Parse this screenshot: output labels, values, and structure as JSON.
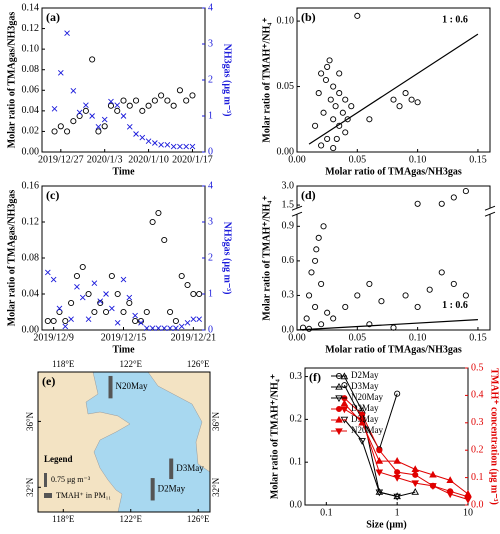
{
  "chart_data": [
    {
      "type": "scatter",
      "label": "(a)",
      "xlabel": "Time",
      "ylabel": "Molar ratio of TMAgas/NH3gas",
      "y2label": "NH3gas (μg m⁻³)",
      "xlim": [
        "2019/12/24",
        "2020/1/19"
      ],
      "xticks": [
        "2019/12/27",
        "2020/1/3",
        "2020/1/10",
        "2020/1/17"
      ],
      "ylim": [
        0,
        0.14
      ],
      "yticks": [
        {
          "value": 0,
          "label": "0.00"
        },
        {
          "value": 0.02,
          "label": "0.02"
        },
        {
          "value": 0.04,
          "label": "0.04"
        },
        {
          "value": 0.06,
          "label": "0.06"
        },
        {
          "value": 0.08,
          "label": "0.08"
        },
        {
          "value": 0.1,
          "label": "0.10"
        },
        {
          "value": 0.12,
          "label": "0.12"
        },
        {
          "value": 0.14,
          "label": "0.14"
        }
      ],
      "y2lim": [
        0,
        4
      ],
      "y2ticks": [
        0,
        1,
        2,
        3,
        4
      ],
      "y2color": "#1a1adb",
      "x": [
        "2019/12/26",
        "2019/12/27",
        "2019/12/28",
        "2019/12/29",
        "2019/12/30",
        "2019/12/31",
        "2020/1/1",
        "2020/1/2",
        "2020/1/3",
        "2020/1/4",
        "2020/1/5",
        "2020/1/6",
        "2020/1/7",
        "2020/1/8",
        "2020/1/9",
        "2020/1/10",
        "2020/1/11",
        "2020/1/12",
        "2020/1/13",
        "2020/1/14",
        "2020/1/15",
        "2020/1/16",
        "2020/1/17"
      ],
      "series": [
        {
          "marker": "circle",
          "filled": false,
          "color": "#000000",
          "values": [
            0.02,
            0.025,
            0.02,
            0.03,
            0.035,
            0.04,
            0.09,
            0.02,
            0.025,
            0.045,
            0.04,
            0.05,
            0.045,
            0.05,
            0.04,
            0.045,
            0.05,
            0.055,
            0.05,
            0.045,
            0.06,
            0.05,
            0.055
          ]
        },
        {
          "marker": "cross",
          "filled": false,
          "color": "#1a1adb",
          "axis": "y2",
          "values": [
            1.2,
            2.2,
            3.3,
            1.7,
            1.1,
            1.3,
            1.0,
            0.7,
            0.9,
            1.4,
            1.3,
            1.0,
            0.7,
            0.5,
            0.4,
            0.3,
            0.25,
            0.2,
            0.2,
            0.15,
            0.15,
            0.15,
            0.15
          ]
        }
      ]
    },
    {
      "type": "scatter",
      "label": "(b)",
      "xlabel": "Molar ratio of TMAgas/NH3gas",
      "ylabel": "Molar ratio of TMAH⁺/NH₄⁺",
      "annotation": "1 : 0.6",
      "xlim": [
        0,
        0.16
      ],
      "xticks": [
        {
          "value": 0,
          "label": "0.00"
        },
        {
          "value": 0.05,
          "label": "0.05"
        },
        {
          "value": 0.1,
          "label": "0.10"
        },
        {
          "value": 0.15,
          "label": "0.15"
        }
      ],
      "ylim": [
        0,
        0.11
      ],
      "yticks": [
        {
          "value": 0,
          "label": "0.00"
        },
        {
          "value": 0.05,
          "label": "0.05"
        },
        {
          "value": 0.1,
          "label": "0.10"
        }
      ],
      "fit": {
        "x": [
          0.01,
          0.15
        ],
        "y": [
          0.006,
          0.09
        ]
      },
      "x": [
        0.015,
        0.018,
        0.02,
        0.022,
        0.025,
        0.025,
        0.028,
        0.03,
        0.03,
        0.032,
        0.035,
        0.035,
        0.038,
        0.04,
        0.04,
        0.042,
        0.045,
        0.02,
        0.03,
        0.024,
        0.033,
        0.027,
        0.05,
        0.06,
        0.08,
        0.085,
        0.09,
        0.095,
        0.1,
        0.035
      ],
      "series": [
        {
          "marker": "circle",
          "filled": false,
          "color": "#000000",
          "values": [
            0.02,
            0.045,
            0.06,
            0.03,
            0.065,
            0.01,
            0.04,
            0.025,
            0.05,
            0.035,
            0.02,
            0.045,
            0.03,
            0.015,
            0.04,
            0.025,
            0.035,
            0.005,
            0.003,
            0.055,
            0.01,
            0.07,
            0.104,
            0.025,
            0.04,
            0.035,
            0.045,
            0.04,
            0.038,
            0.06
          ]
        }
      ]
    },
    {
      "type": "scatter",
      "label": "(c)",
      "xlabel": "Time",
      "ylabel": "Molar ratio of TMAgas/NH3gas",
      "y2label": "NH3gas (μg m⁻³)",
      "xlim": [
        "2019/12/8",
        "2019/12/22"
      ],
      "xticks": [
        "2019/12/9",
        "2019/12/15",
        "2019/12/21"
      ],
      "ylim": [
        0,
        0.16
      ],
      "yticks": [
        {
          "value": 0,
          "label": "0.00"
        },
        {
          "value": 0.04,
          "label": "0.04"
        },
        {
          "value": 0.08,
          "label": "0.08"
        },
        {
          "value": 0.12,
          "label": "0.12"
        },
        {
          "value": 0.16,
          "label": "0.16"
        }
      ],
      "y2lim": [
        0,
        4
      ],
      "y2ticks": [
        0,
        1,
        2,
        3,
        4
      ],
      "y2color": "#1a1adb",
      "x": [
        "2019/12/8 12:00",
        "2019/12/9",
        "2019/12/9 12:00",
        "2019/12/10",
        "2019/12/10 12:00",
        "2019/12/11",
        "2019/12/11 12:00",
        "2019/12/12",
        "2019/12/12 12:00",
        "2019/12/13",
        "2019/12/13 12:00",
        "2019/12/14",
        "2019/12/14 12:00",
        "2019/12/15",
        "2019/12/15 12:00",
        "2019/12/16",
        "2019/12/16 12:00",
        "2019/12/17",
        "2019/12/17 12:00",
        "2019/12/18",
        "2019/12/18 12:00",
        "2019/12/19",
        "2019/12/19 12:00",
        "2019/12/20",
        "2019/12/20 12:00",
        "2019/12/21",
        "2019/12/21 12:00"
      ],
      "series": [
        {
          "marker": "circle",
          "filled": false,
          "color": "#000000",
          "values": [
            0.01,
            0.01,
            0.02,
            0.01,
            0.03,
            0.06,
            0.07,
            0.04,
            0.02,
            0.03,
            0.02,
            0.06,
            0.04,
            0.02,
            0.03,
            0.01,
            0.01,
            0.02,
            0.12,
            0.13,
            0.1,
            0.02,
            0.01,
            0.06,
            0.05,
            0.04,
            0.04
          ]
        },
        {
          "marker": "cross",
          "filled": false,
          "color": "#1a1adb",
          "axis": "y2",
          "values": [
            1.6,
            1.4,
            0.6,
            0.1,
            0.3,
            1.2,
            0.9,
            0.3,
            1.3,
            0.8,
            1.0,
            0.6,
            0.2,
            1.4,
            0.9,
            0.4,
            0.2,
            0.05,
            0.05,
            0.05,
            0.05,
            0.05,
            0.05,
            0.1,
            0.2,
            0.3,
            0.3
          ]
        }
      ]
    },
    {
      "type": "scatter",
      "label": "(d)",
      "xlabel": "Molar ratio of TMAgas/NH3gas",
      "ylabel": "Molar ratio of TMAH⁺/NH₄⁺",
      "annotation": "1 : 0.6",
      "xlim": [
        0,
        0.16
      ],
      "xticks": [
        {
          "value": 0,
          "label": "0.00"
        },
        {
          "value": 0.05,
          "label": "0.05"
        },
        {
          "value": 0.1,
          "label": "0.10"
        },
        {
          "value": 0.15,
          "label": "0.15"
        }
      ],
      "ylim": [
        0,
        3
      ],
      "ybreak": [
        1,
        1.3
      ],
      "yticks": [
        {
          "value": 0,
          "label": "0.0"
        },
        0.3,
        0.6,
        0.9,
        1.5,
        {
          "value": 3,
          "label": "3.0"
        }
      ],
      "fit": {
        "x": [
          0,
          0.15
        ],
        "y": [
          0,
          0.09
        ]
      },
      "x": [
        0.005,
        0.008,
        0.01,
        0.012,
        0.015,
        0.015,
        0.018,
        0.02,
        0.02,
        0.022,
        0.03,
        0.04,
        0.05,
        0.06,
        0.07,
        0.08,
        0.09,
        0.1,
        0.11,
        0.12,
        0.13,
        0.14,
        0.12,
        0.13,
        0.1,
        0.14,
        0.01,
        0.016,
        0.025,
        0.06
      ],
      "series": [
        {
          "marker": "circle",
          "filled": false,
          "color": "#000000",
          "values": [
            0.02,
            0.1,
            0.3,
            0.5,
            0.6,
            0.2,
            0.8,
            0.4,
            0.05,
            0.9,
            0.1,
            0.2,
            0.3,
            0.4,
            0.25,
            0.02,
            0.3,
            0.2,
            0.35,
            0.5,
            0.4,
            0.3,
            1.6,
            2.1,
            1.6,
            2.6,
            0.01,
            0.7,
            0.15,
            0.05
          ]
        }
      ]
    },
    {
      "type": "map",
      "label": "(e)",
      "lonlim": [
        116.5,
        126.7
      ],
      "latlim": [
        30.5,
        39
      ],
      "lonticks": [
        {
          "value": 118,
          "label": "118°E"
        },
        {
          "value": 122,
          "label": "122°E"
        },
        {
          "value": 126,
          "label": "126°E"
        }
      ],
      "latticks": [
        {
          "value": 32,
          "label": "32°N"
        },
        {
          "value": 36,
          "label": "36°N"
        }
      ],
      "legend_title": "Legend",
      "scale_value": 0.75,
      "scale_label": "0.75 μg m⁻³",
      "pm_label": "TMAH⁺ in PM₁₁",
      "stations": [
        {
          "name": "N20May",
          "lon": 120.8,
          "lat": 37.4,
          "value": 1.2
        },
        {
          "name": "D3May",
          "lon": 124.4,
          "lat": 32.5,
          "value": 1.1
        },
        {
          "name": "D2May",
          "lon": 123.3,
          "lat": 31.2,
          "value": 1.2
        }
      ]
    },
    {
      "type": "line",
      "label": "(f)",
      "xlabel": "Size (μm)",
      "ylabel": "Molar ratio of TMAH⁺/NH₄⁺",
      "y2label": "TMAH⁺ concentration (μg m⁻³)",
      "y2color": "#e00000",
      "xlog": true,
      "xlim": [
        0.05,
        10
      ],
      "xticks": [
        0.1,
        1,
        10
      ],
      "ylim": [
        0,
        0.32
      ],
      "yticks": [
        {
          "value": 0,
          "label": "0.0"
        },
        0.1,
        0.2,
        0.3
      ],
      "y2lim": [
        0,
        0.5
      ],
      "y2ticks": [
        {
          "value": 0,
          "label": "0.0"
        },
        0.1,
        0.2,
        0.3,
        0.4,
        0.5
      ],
      "legend": true,
      "series": [
        {
          "name": "D2May",
          "marker": "circle",
          "filled": false,
          "color": "#000000",
          "x": [
            0.18,
            0.32,
            0.56,
            1.0
          ],
          "values": [
            0.28,
            0.2,
            0.13,
            0.26
          ]
        },
        {
          "name": "D3May",
          "marker": "triangle-up",
          "filled": false,
          "color": "#000000",
          "x": [
            0.18,
            0.32,
            0.56,
            1.0,
            1.8
          ],
          "values": [
            0.3,
            0.22,
            0.03,
            0.02,
            0.03
          ]
        },
        {
          "name": "N20May",
          "marker": "triangle-down",
          "filled": false,
          "color": "#000000",
          "x": [
            0.18,
            0.32,
            0.56,
            1.0
          ],
          "values": [
            0.2,
            0.15,
            0.03,
            0.02
          ]
        },
        {
          "name": "D2May",
          "marker": "circle",
          "filled": true,
          "color": "#e00000",
          "axis": "y2",
          "x": [
            0.18,
            0.32,
            0.56,
            1.0,
            1.8,
            3.2,
            5.6,
            10
          ],
          "values": [
            0.39,
            0.33,
            0.2,
            0.12,
            0.11,
            0.07,
            0.05,
            0.03
          ]
        },
        {
          "name": "D3May",
          "marker": "triangle-up",
          "filled": true,
          "color": "#e00000",
          "axis": "y2",
          "x": [
            0.18,
            0.32,
            0.56,
            1.0,
            1.8,
            3.2,
            5.6,
            10
          ],
          "values": [
            0.37,
            0.3,
            0.16,
            0.16,
            0.13,
            0.11,
            0.09,
            0.04
          ]
        },
        {
          "name": "N20May",
          "marker": "triangle-down",
          "filled": true,
          "color": "#e00000",
          "axis": "y2",
          "x": [
            0.18,
            0.32,
            0.56,
            1.0,
            1.8,
            3.2,
            5.6,
            10
          ],
          "values": [
            0.35,
            0.31,
            0.12,
            0.1,
            0.08,
            0.07,
            0.04,
            0.02
          ]
        }
      ]
    }
  ]
}
